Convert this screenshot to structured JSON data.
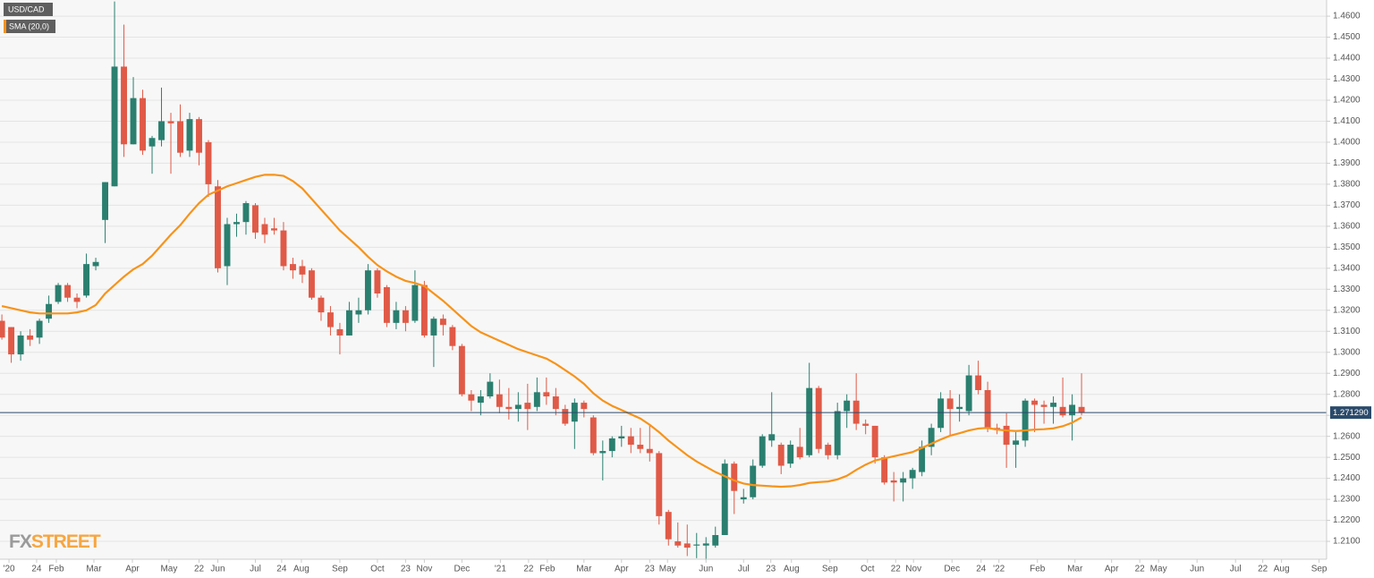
{
  "chart_data": {
    "type": "candlestick",
    "watermark": {
      "fx": "FX",
      "street": "STREET"
    },
    "x": [
      0,
      1,
      2,
      3,
      4,
      5,
      6,
      7,
      8,
      9,
      10,
      11,
      12,
      13,
      14,
      15,
      16,
      17,
      18,
      19,
      20,
      21,
      22,
      23,
      24,
      25,
      26,
      27,
      28,
      29,
      30,
      31,
      32,
      33,
      34,
      35,
      36,
      37,
      38,
      39,
      40,
      41,
      42,
      43,
      44,
      45,
      46,
      47,
      48,
      49,
      50,
      51,
      52,
      53,
      54,
      55,
      56,
      57,
      58,
      59,
      60,
      61,
      62,
      63,
      64,
      65,
      66,
      67,
      68,
      69,
      70,
      71,
      72,
      73,
      74,
      75,
      76,
      77,
      78,
      79,
      80,
      81,
      82,
      83,
      84,
      85,
      86,
      87,
      88,
      89,
      90,
      91,
      92,
      93,
      94,
      95,
      96,
      97,
      98,
      99,
      100,
      101,
      102,
      103,
      104,
      105,
      106,
      107,
      108,
      109,
      110,
      111,
      112,
      113,
      114,
      115
    ],
    "series": [
      {
        "name": "USD/CAD",
        "type": "candlestick",
        "up_color": "#2a7f6f",
        "down_color": "#e05a47",
        "open": [
          1.315,
          1.312,
          1.299,
          1.308,
          1.307,
          1.316,
          1.324,
          1.332,
          1.326,
          1.327,
          1.341,
          1.363,
          1.379,
          1.436,
          1.399,
          1.421,
          1.398,
          1.401,
          1.41,
          1.41,
          1.396,
          1.411,
          1.4,
          1.379,
          1.341,
          1.361,
          1.362,
          1.37,
          1.361,
          1.359,
          1.358,
          1.342,
          1.341,
          1.339,
          1.326,
          1.319,
          1.311,
          1.308,
          1.318,
          1.32,
          1.339,
          1.331,
          1.314,
          1.32,
          1.315,
          1.332,
          1.308,
          1.316,
          1.312,
          1.303,
          1.28,
          1.276,
          1.279,
          1.28,
          1.274,
          1.273,
          1.276,
          1.274,
          1.281,
          1.279,
          1.273,
          1.267,
          1.276,
          1.269,
          1.252,
          1.253,
          1.259,
          1.26,
          1.256,
          1.254,
          1.252,
          1.224,
          1.21,
          1.209,
          1.208,
          1.208,
          1.208,
          1.213,
          1.247,
          1.23,
          1.231,
          1.246,
          1.258,
          1.256,
          1.247,
          1.255,
          1.251,
          1.283,
          1.256,
          1.251,
          1.272,
          1.277,
          1.266,
          1.265,
          1.25,
          1.239,
          1.238,
          1.24,
          1.243,
          1.255,
          1.264,
          1.278,
          1.273,
          1.272,
          1.289,
          1.282,
          1.264,
          1.265,
          1.256,
          1.258,
          1.277,
          1.275,
          1.274,
          1.274,
          1.27,
          1.274
        ],
        "high": [
          1.318,
          1.312,
          1.31,
          1.311,
          1.316,
          1.327,
          1.333,
          1.333,
          1.328,
          1.347,
          1.345,
          1.381,
          1.467,
          1.456,
          1.431,
          1.425,
          1.403,
          1.426,
          1.414,
          1.418,
          1.414,
          1.412,
          1.401,
          1.382,
          1.364,
          1.366,
          1.372,
          1.371,
          1.364,
          1.364,
          1.362,
          1.345,
          1.344,
          1.34,
          1.327,
          1.322,
          1.314,
          1.324,
          1.326,
          1.342,
          1.34,
          1.332,
          1.324,
          1.322,
          1.339,
          1.334,
          1.317,
          1.318,
          1.313,
          1.304,
          1.282,
          1.282,
          1.29,
          1.287,
          1.283,
          1.281,
          1.285,
          1.288,
          1.288,
          1.283,
          1.275,
          1.278,
          1.277,
          1.27,
          1.258,
          1.26,
          1.265,
          1.264,
          1.264,
          1.265,
          1.253,
          1.225,
          1.219,
          1.218,
          1.214,
          1.212,
          1.217,
          1.249,
          1.248,
          1.235,
          1.249,
          1.261,
          1.281,
          1.257,
          1.258,
          1.264,
          1.295,
          1.284,
          1.257,
          1.276,
          1.28,
          1.29,
          1.268,
          1.265,
          1.251,
          1.243,
          1.243,
          1.245,
          1.258,
          1.266,
          1.281,
          1.282,
          1.28,
          1.294,
          1.296,
          1.286,
          1.266,
          1.271,
          1.262,
          1.278,
          1.278,
          1.277,
          1.279,
          1.288,
          1.28,
          1.29
        ],
        "low": [
          1.306,
          1.295,
          1.296,
          1.303,
          1.304,
          1.314,
          1.323,
          1.324,
          1.321,
          1.326,
          1.339,
          1.352,
          1.379,
          1.393,
          1.399,
          1.394,
          1.385,
          1.398,
          1.385,
          1.393,
          1.393,
          1.389,
          1.374,
          1.338,
          1.332,
          1.355,
          1.356,
          1.354,
          1.352,
          1.356,
          1.339,
          1.335,
          1.333,
          1.325,
          1.315,
          1.308,
          1.299,
          1.308,
          1.314,
          1.318,
          1.326,
          1.312,
          1.311,
          1.31,
          1.314,
          1.307,
          1.293,
          1.308,
          1.301,
          1.279,
          1.272,
          1.27,
          1.278,
          1.271,
          1.268,
          1.267,
          1.263,
          1.272,
          1.275,
          1.27,
          1.265,
          1.254,
          1.269,
          1.251,
          1.239,
          1.25,
          1.255,
          1.252,
          1.252,
          1.248,
          1.218,
          1.208,
          1.207,
          1.203,
          1.202,
          1.201,
          1.207,
          1.213,
          1.223,
          1.228,
          1.23,
          1.245,
          1.255,
          1.242,
          1.245,
          1.249,
          1.25,
          1.252,
          1.249,
          1.249,
          1.264,
          1.263,
          1.261,
          1.247,
          1.237,
          1.229,
          1.229,
          1.235,
          1.241,
          1.251,
          1.262,
          1.26,
          1.267,
          1.27,
          1.28,
          1.262,
          1.261,
          1.245,
          1.245,
          1.255,
          1.262,
          1.266,
          1.266,
          1.269,
          1.258,
          1.27
        ],
        "close": [
          1.307,
          1.299,
          1.308,
          1.306,
          1.315,
          1.323,
          1.332,
          1.326,
          1.324,
          1.342,
          1.343,
          1.381,
          1.436,
          1.399,
          1.421,
          1.396,
          1.402,
          1.41,
          1.409,
          1.395,
          1.411,
          1.395,
          1.38,
          1.34,
          1.361,
          1.362,
          1.371,
          1.357,
          1.356,
          1.358,
          1.341,
          1.339,
          1.337,
          1.326,
          1.319,
          1.312,
          1.308,
          1.32,
          1.32,
          1.339,
          1.328,
          1.314,
          1.32,
          1.314,
          1.332,
          1.308,
          1.316,
          1.313,
          1.303,
          1.28,
          1.277,
          1.279,
          1.286,
          1.274,
          1.273,
          1.275,
          1.273,
          1.281,
          1.279,
          1.273,
          1.266,
          1.276,
          1.273,
          1.252,
          1.253,
          1.259,
          1.26,
          1.256,
          1.254,
          1.252,
          1.222,
          1.211,
          1.208,
          1.207,
          1.2085,
          1.209,
          1.213,
          1.247,
          1.234,
          1.231,
          1.246,
          1.26,
          1.261,
          1.246,
          1.256,
          1.25,
          1.283,
          1.254,
          1.251,
          1.272,
          1.277,
          1.266,
          1.265,
          1.25,
          1.238,
          1.238,
          1.24,
          1.244,
          1.255,
          1.264,
          1.278,
          1.273,
          1.274,
          1.289,
          1.282,
          1.264,
          1.263,
          1.256,
          1.258,
          1.277,
          1.275,
          1.274,
          1.276,
          1.27,
          1.275,
          1.2713
        ]
      },
      {
        "name": "SMA (20,0)",
        "type": "line",
        "color": "#f7931a",
        "values": [
          1.322,
          1.321,
          1.32,
          1.319,
          1.3185,
          1.3185,
          1.3185,
          1.3185,
          1.319,
          1.32,
          1.3225,
          1.328,
          1.332,
          1.336,
          1.3395,
          1.342,
          1.346,
          1.351,
          1.356,
          1.3605,
          1.366,
          1.371,
          1.375,
          1.377,
          1.379,
          1.3805,
          1.382,
          1.3835,
          1.3845,
          1.3845,
          1.384,
          1.3815,
          1.378,
          1.373,
          1.368,
          1.363,
          1.358,
          1.354,
          1.35,
          1.3455,
          1.3415,
          1.3385,
          1.336,
          1.334,
          1.333,
          1.3315,
          1.328,
          1.3245,
          1.3205,
          1.3165,
          1.3125,
          1.3095,
          1.3075,
          1.3055,
          1.3035,
          1.3015,
          1.3,
          1.2985,
          1.297,
          1.2945,
          1.2915,
          1.2885,
          1.285,
          1.2805,
          1.277,
          1.2745,
          1.2725,
          1.2705,
          1.2685,
          1.2655,
          1.262,
          1.258,
          1.2545,
          1.251,
          1.248,
          1.2455,
          1.243,
          1.241,
          1.239,
          1.2375,
          1.2368,
          1.2365,
          1.2362,
          1.236,
          1.2362,
          1.2368,
          1.2378,
          1.2382,
          1.2385,
          1.2395,
          1.2412,
          1.244,
          1.2465,
          1.2485,
          1.2495,
          1.2505,
          1.2515,
          1.2525,
          1.2545,
          1.2565,
          1.2585,
          1.2603,
          1.2615,
          1.2628,
          1.2637,
          1.264,
          1.2632,
          1.2628,
          1.2625,
          1.2628,
          1.2632,
          1.2634,
          1.2638,
          1.2648,
          1.2665,
          1.269
        ]
      }
    ],
    "last_price": {
      "value": 1.27129,
      "label": "1.271290",
      "color": "#2b4a6b"
    },
    "xlim": [
      -0.2,
      141.1
    ],
    "ylim": [
      1.2015,
      1.4677
    ],
    "xticks": [
      {
        "value": 0.76,
        "label": "'20"
      },
      {
        "value": 3.7,
        "label": "24"
      },
      {
        "value": 5.8,
        "label": "Feb"
      },
      {
        "value": 9.8,
        "label": "Mar"
      },
      {
        "value": 13.9,
        "label": "Apr"
      },
      {
        "value": 17.8,
        "label": "May"
      },
      {
        "value": 21.0,
        "label": "22"
      },
      {
        "value": 23.0,
        "label": "Jun"
      },
      {
        "value": 27.0,
        "label": "Jul"
      },
      {
        "value": 29.8,
        "label": "24"
      },
      {
        "value": 31.9,
        "label": "Aug"
      },
      {
        "value": 36.0,
        "label": "Sep"
      },
      {
        "value": 40.0,
        "label": "Oct"
      },
      {
        "value": 43.0,
        "label": "23"
      },
      {
        "value": 45.0,
        "label": "Nov"
      },
      {
        "value": 49.0,
        "label": "Dec"
      },
      {
        "value": 53.1,
        "label": "'21"
      },
      {
        "value": 56.1,
        "label": "22"
      },
      {
        "value": 58.1,
        "label": "Feb"
      },
      {
        "value": 62.0,
        "label": "Mar"
      },
      {
        "value": 66.0,
        "label": "Apr"
      },
      {
        "value": 69.0,
        "label": "23"
      },
      {
        "value": 70.9,
        "label": "May"
      },
      {
        "value": 75.0,
        "label": "Jun"
      },
      {
        "value": 79.0,
        "label": "Jul"
      },
      {
        "value": 81.9,
        "label": "23"
      },
      {
        "value": 84.1,
        "label": "Aug"
      },
      {
        "value": 88.2,
        "label": "Sep"
      },
      {
        "value": 92.2,
        "label": "Oct"
      },
      {
        "value": 95.2,
        "label": "22"
      },
      {
        "value": 97.1,
        "label": "Nov"
      },
      {
        "value": 101.2,
        "label": "Dec"
      },
      {
        "value": 104.3,
        "label": "24"
      },
      {
        "value": 106.2,
        "label": "'22"
      },
      {
        "value": 110.3,
        "label": "Feb"
      },
      {
        "value": 114.3,
        "label": "Mar"
      },
      {
        "value": 118.2,
        "label": "Apr"
      },
      {
        "value": 121.2,
        "label": "22"
      },
      {
        "value": 123.2,
        "label": "May"
      },
      {
        "value": 127.3,
        "label": "Jun"
      },
      {
        "value": 131.4,
        "label": "Jul"
      },
      {
        "value": 134.3,
        "label": "22"
      },
      {
        "value": 136.3,
        "label": "Aug"
      },
      {
        "value": 140.3,
        "label": "Sep"
      }
    ],
    "yticks": [
      {
        "value": 1.21,
        "label": "1.2100"
      },
      {
        "value": 1.22,
        "label": "1.2200"
      },
      {
        "value": 1.23,
        "label": "1.2300"
      },
      {
        "value": 1.24,
        "label": "1.2400"
      },
      {
        "value": 1.25,
        "label": "1.2500"
      },
      {
        "value": 1.26,
        "label": "1.2600"
      },
      {
        "value": 1.27,
        "label": "1.2700"
      },
      {
        "value": 1.28,
        "label": "1.2800"
      },
      {
        "value": 1.29,
        "label": "1.2900"
      },
      {
        "value": 1.3,
        "label": "1.3000"
      },
      {
        "value": 1.31,
        "label": "1.3100"
      },
      {
        "value": 1.32,
        "label": "1.3200"
      },
      {
        "value": 1.33,
        "label": "1.3300"
      },
      {
        "value": 1.34,
        "label": "1.3400"
      },
      {
        "value": 1.35,
        "label": "1.3500"
      },
      {
        "value": 1.36,
        "label": "1.3600"
      },
      {
        "value": 1.37,
        "label": "1.3700"
      },
      {
        "value": 1.38,
        "label": "1.3800"
      },
      {
        "value": 1.39,
        "label": "1.3900"
      },
      {
        "value": 1.4,
        "label": "1.4000"
      },
      {
        "value": 1.41,
        "label": "1.4100"
      },
      {
        "value": 1.42,
        "label": "1.4200"
      },
      {
        "value": 1.43,
        "label": "1.4300"
      },
      {
        "value": 1.44,
        "label": "1.4400"
      },
      {
        "value": 1.45,
        "label": "1.4500"
      },
      {
        "value": 1.46,
        "label": "1.4600"
      }
    ],
    "grid": true
  }
}
